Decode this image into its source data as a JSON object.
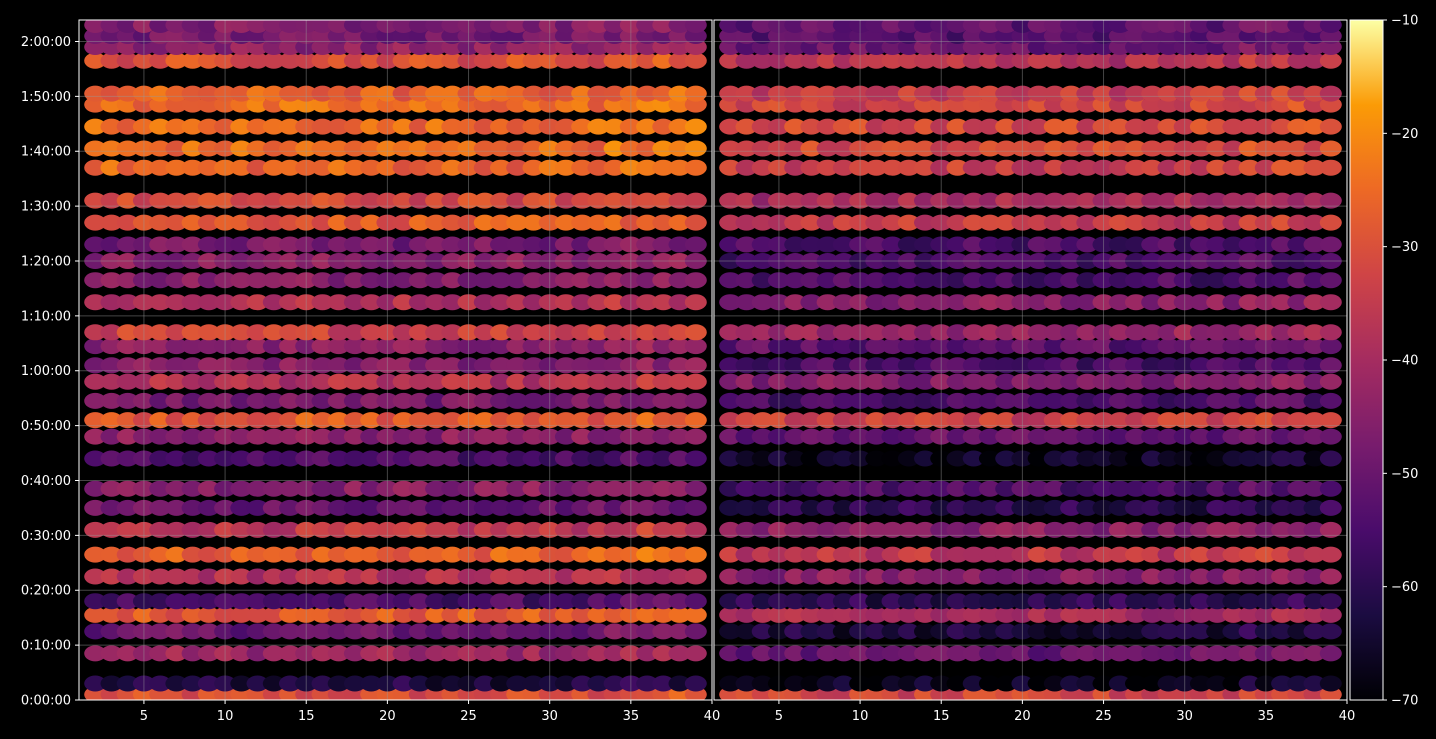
{
  "chart_data": {
    "type": "heatmap",
    "title": "",
    "panels": [
      {
        "name": "",
        "x_ticks": [
          "5",
          "10",
          "15",
          "20",
          "25",
          "30",
          "35",
          "40"
        ],
        "xlim": [
          1,
          40
        ]
      },
      {
        "name": "",
        "x_ticks": [
          "5",
          "10",
          "15",
          "20",
          "25",
          "30",
          "35",
          "40"
        ],
        "xlim": [
          1,
          40
        ]
      }
    ],
    "x_channels": {
      "start": 2,
      "end": 39,
      "step": 1
    },
    "y_time_ticks": [
      "0:00:00",
      "0:10:00",
      "0:20:00",
      "0:30:00",
      "0:40:00",
      "0:50:00",
      "1:00:00",
      "1:10:00",
      "1:20:00",
      "1:30:00",
      "1:40:00",
      "1:50:00",
      "2:00:00"
    ],
    "ylim_seconds": [
      0,
      7435
    ],
    "colorbar": {
      "colormap": "inferno",
      "range": [
        -70,
        -10
      ],
      "ticks": [
        "−70",
        "−60",
        "−50",
        "−40",
        "−30",
        "−20",
        "−10"
      ]
    },
    "grid": true,
    "colors": {
      "background": "#000000",
      "text": "#ffffff",
      "grid": "#9a9a9a"
    },
    "band_rows": [
      {
        "t": "0:01:00",
        "level_left": -31,
        "level_right": -33
      },
      {
        "t": "0:03:00",
        "level_left": -62,
        "level_right": -67
      },
      {
        "t": "0:08:30",
        "level_left": -42,
        "level_right": -50
      },
      {
        "t": "0:12:30",
        "level_left": -50,
        "level_right": -63
      },
      {
        "t": "0:15:30",
        "level_left": -28,
        "level_right": -40
      },
      {
        "t": "0:18:00",
        "level_left": -55,
        "level_right": -60
      },
      {
        "t": "0:22:30",
        "level_left": -38,
        "level_right": -45
      },
      {
        "t": "0:26:30",
        "level_left": -27,
        "level_right": -36
      },
      {
        "t": "0:31:00",
        "level_left": -36,
        "level_right": -45
      },
      {
        "t": "0:35:00",
        "level_left": -50,
        "level_right": -60
      },
      {
        "t": "0:38:30",
        "level_left": -45,
        "level_right": -55
      },
      {
        "t": "0:44:00",
        "level_left": -55,
        "level_right": -66
      },
      {
        "t": "0:48:00",
        "level_left": -45,
        "level_right": -50
      },
      {
        "t": "0:51:00",
        "level_left": -28,
        "level_right": -34
      },
      {
        "t": "0:54:30",
        "level_left": -48,
        "level_right": -55
      },
      {
        "t": "0:58:00",
        "level_left": -38,
        "level_right": -46
      },
      {
        "t": "1:01:00",
        "level_left": -46,
        "level_right": -55
      },
      {
        "t": "1:04:30",
        "level_left": -45,
        "level_right": -52
      },
      {
        "t": "1:07:00",
        "level_left": -33,
        "level_right": -42
      },
      {
        "t": "1:12:30",
        "level_left": -38,
        "level_right": -45
      },
      {
        "t": "1:16:30",
        "level_left": -45,
        "level_right": -55
      },
      {
        "t": "1:20:00",
        "level_left": -45,
        "level_right": -55
      },
      {
        "t": "1:23:00",
        "level_left": -48,
        "level_right": -55
      },
      {
        "t": "1:27:00",
        "level_left": -28,
        "level_right": -35
      },
      {
        "t": "1:31:00",
        "level_left": -32,
        "level_right": -40
      },
      {
        "t": "1:37:00",
        "level_left": -26,
        "level_right": -34
      },
      {
        "t": "1:40:30",
        "level_left": -25,
        "level_right": -32
      },
      {
        "t": "1:44:30",
        "level_left": -25,
        "level_right": -32
      },
      {
        "t": "1:48:30",
        "level_left": -25,
        "level_right": -33
      },
      {
        "t": "1:50:30",
        "level_left": -27,
        "level_right": -35
      },
      {
        "t": "1:56:30",
        "level_left": -30,
        "level_right": -38
      },
      {
        "t": "1:59:00",
        "level_left": -44,
        "level_right": -50
      },
      {
        "t": "2:01:00",
        "level_left": -48,
        "level_right": -53
      },
      {
        "t": "2:03:00",
        "level_left": -46,
        "level_right": -52
      }
    ]
  }
}
